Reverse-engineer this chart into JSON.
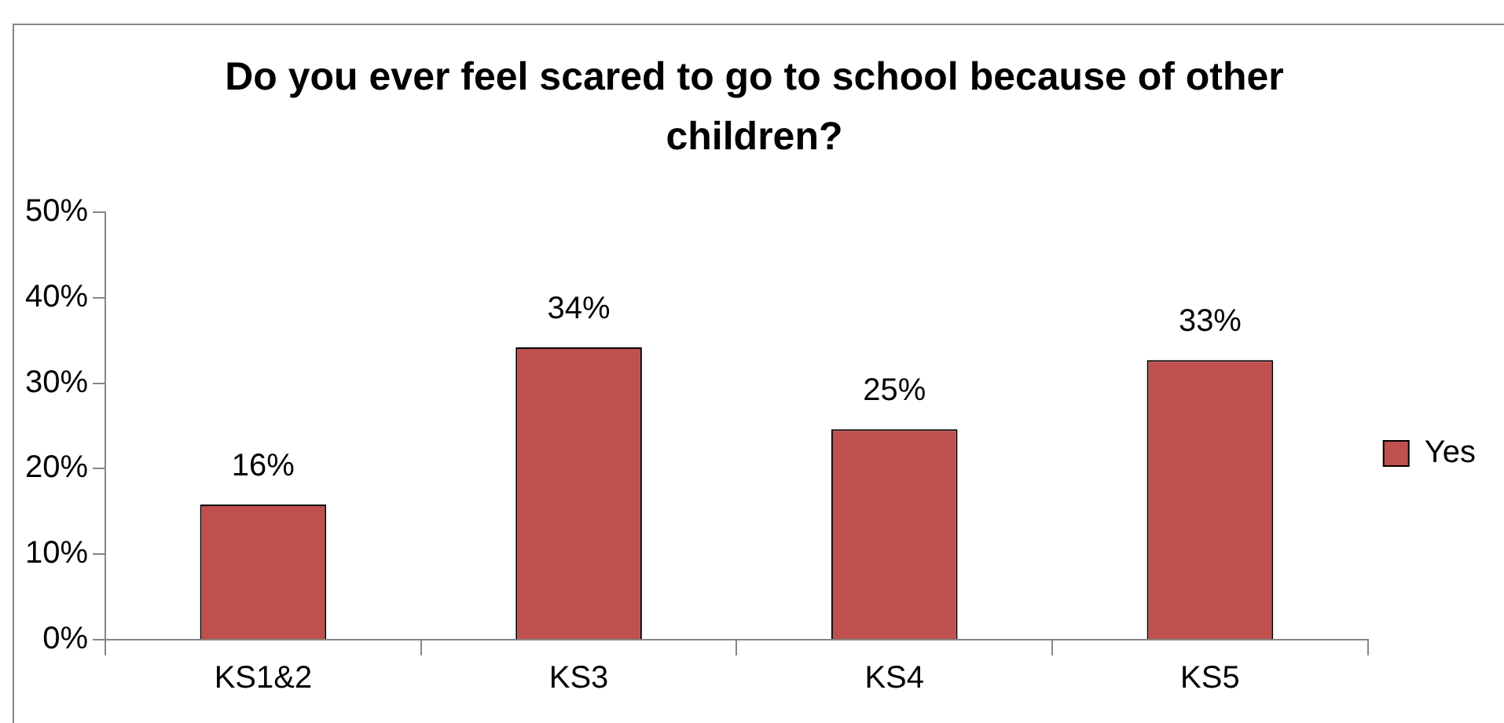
{
  "chart_data": {
    "type": "bar",
    "title": "Do you ever feel scared to go to school because of other children?",
    "categories": [
      "KS1&2",
      "KS3",
      "KS4",
      "KS5"
    ],
    "series": [
      {
        "name": "Yes",
        "color": "#c0504d",
        "values": [
          15.8,
          34.2,
          24.6,
          32.7
        ],
        "value_labels": [
          "16%",
          "34%",
          "25%",
          "33%"
        ]
      }
    ],
    "ylim": [
      0,
      50
    ],
    "yticks": [
      {
        "value": 0,
        "label": "0%"
      },
      {
        "value": 10,
        "label": "10%"
      },
      {
        "value": 20,
        "label": "20%"
      },
      {
        "value": 30,
        "label": "30%"
      },
      {
        "value": 40,
        "label": "40%"
      },
      {
        "value": 50,
        "label": "50%"
      }
    ],
    "grid": false,
    "legend": "right"
  }
}
